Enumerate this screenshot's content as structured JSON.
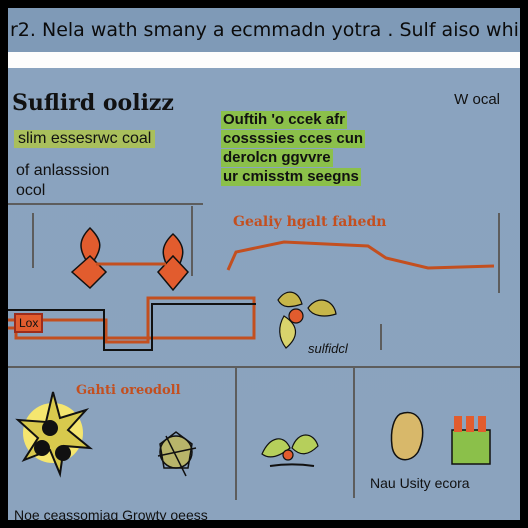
{
  "header": {
    "title": "r2. Nela wath smany a ecmmadn yotra . Sulf aiso whil"
  },
  "content": {
    "title": "Suflird oolizz",
    "top_right": "W ocal",
    "legend": {
      "line1": "slim essesrwc coal",
      "line2": "of anlasssion",
      "line3": "ocol"
    },
    "callout": {
      "line1": "Ouftih 'o ccek afr",
      "line2": "cossssies cces cun",
      "line3": "derolcn ggvvre",
      "line4": "ur cmisstm seegns"
    },
    "chart_title": "Gealiy hgalt fahedn",
    "red_box_label": "Lox",
    "sub_label": "sulfidcl",
    "bottom_title": "Gahti oreodoll",
    "bottom_left": "Noe ceassomiag Growty oeess",
    "bottom_right": "Nau Usity ecora"
  }
}
